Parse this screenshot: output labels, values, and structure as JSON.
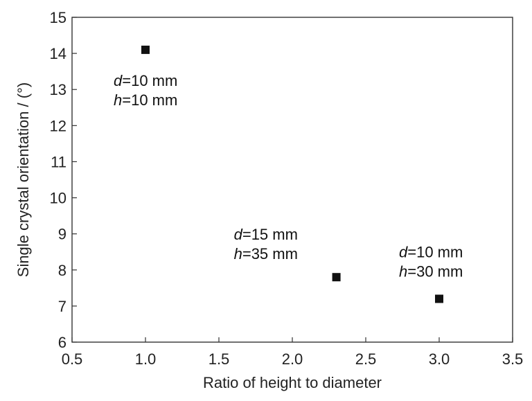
{
  "chart_data": {
    "type": "scatter",
    "title": "",
    "xlabel": "Ratio of height to diameter",
    "ylabel": "Single crystal orientation / (°)",
    "xlim": [
      0.5,
      3.5
    ],
    "ylim": [
      6,
      15
    ],
    "xticks": [
      0.5,
      1.0,
      1.5,
      2.0,
      2.5,
      3.0,
      3.5
    ],
    "xtick_labels": [
      "0.5",
      "1.0",
      "1.5",
      "2.0",
      "2.5",
      "3.0",
      "3.5"
    ],
    "yticks": [
      6,
      7,
      8,
      9,
      10,
      11,
      12,
      13,
      14,
      15
    ],
    "ytick_labels": [
      "6",
      "7",
      "8",
      "9",
      "10",
      "11",
      "12",
      "13",
      "14",
      "15"
    ],
    "grid": false,
    "legend": "none",
    "marker": "square",
    "marker_color": "#111111",
    "points": [
      {
        "x": 1.0,
        "y": 14.1,
        "annotation": {
          "d": "d",
          "d_val": "=10 mm",
          "h": "h",
          "h_val": "=10 mm"
        }
      },
      {
        "x": 2.3,
        "y": 7.8,
        "annotation": {
          "d": "d",
          "d_val": "=15 mm",
          "h": "h",
          "h_val": "=35 mm"
        }
      },
      {
        "x": 3.0,
        "y": 7.2,
        "annotation": {
          "d": "d",
          "d_val": "=10 mm",
          "h": "h",
          "h_val": "=30 mm"
        }
      }
    ]
  }
}
